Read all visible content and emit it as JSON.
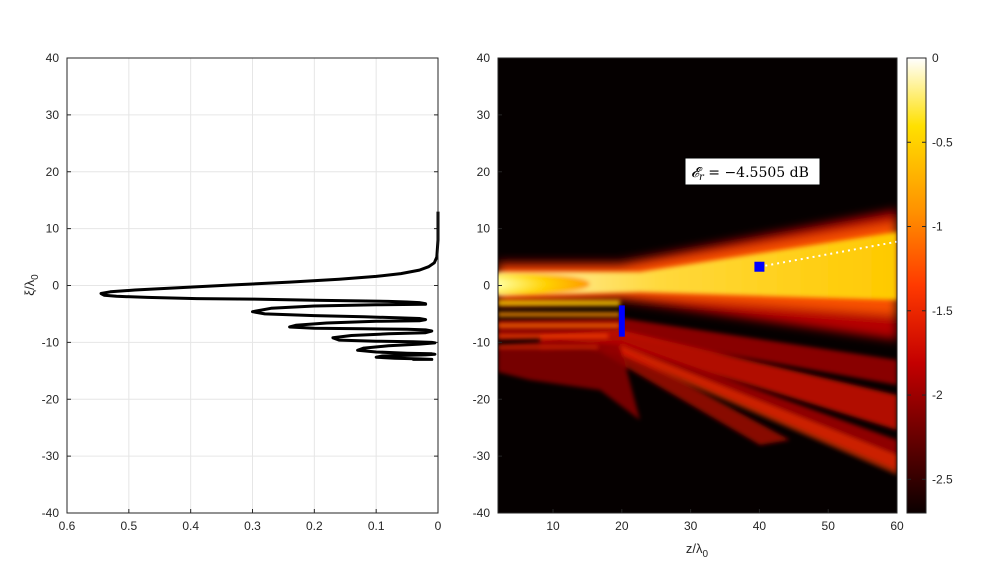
{
  "chart_data": [
    {
      "type": "line",
      "title": "",
      "xlabel": "",
      "ylabel": "ξ/λ0",
      "ylabel_parts": {
        "base": "ξ/λ",
        "sub": "0"
      },
      "xlim": [
        0.6,
        0
      ],
      "x_reversed": true,
      "ylim": [
        -40,
        40
      ],
      "x_ticks": [
        "0.6",
        "0.5",
        "0.4",
        "0.3",
        "0.2",
        "0.1",
        "0"
      ],
      "y_ticks": [
        "-40",
        "-30",
        "-20",
        "-10",
        "0",
        "10",
        "20",
        "30",
        "40"
      ],
      "grid": true,
      "line_color": "#000000",
      "series": [
        {
          "x": [
            0.0,
            0.0,
            0.002,
            0.006,
            0.015,
            0.03,
            0.06,
            0.1,
            0.16,
            0.24,
            0.33,
            0.42,
            0.49,
            0.53,
            0.545,
            0.54,
            0.52,
            0.47,
            0.39,
            0.3,
            0.2,
            0.13,
            0.08,
            0.05,
            0.03,
            0.02,
            0.02,
            0.1,
            0.2,
            0.27,
            0.3,
            0.28,
            0.2,
            0.12,
            0.06,
            0.03,
            0.02,
            0.03,
            0.1,
            0.18,
            0.23,
            0.24,
            0.2,
            0.12,
            0.05,
            0.02,
            0.01,
            0.02,
            0.08,
            0.14,
            0.17,
            0.16,
            0.1,
            0.04,
            0.01,
            0.005,
            0.03,
            0.08,
            0.12,
            0.13,
            0.1,
            0.05,
            0.01,
            0.005,
            0.02,
            0.06,
            0.09,
            0.1,
            0.07,
            0.03,
            0.01,
            0.02,
            0.04,
            0.04,
            0.02
          ],
          "y": [
            13,
            8,
            5,
            4,
            3.3,
            2.7,
            2.1,
            1.6,
            1.1,
            0.6,
            0.1,
            -0.4,
            -0.8,
            -1.1,
            -1.4,
            -1.7,
            -1.9,
            -2.1,
            -2.3,
            -2.4,
            -2.6,
            -2.7,
            -2.8,
            -2.9,
            -3.0,
            -3.2,
            -3.3,
            -3.4,
            -3.6,
            -4.0,
            -4.6,
            -5.0,
            -5.3,
            -5.5,
            -5.7,
            -5.8,
            -6.0,
            -6.2,
            -6.3,
            -6.6,
            -7.0,
            -7.3,
            -7.5,
            -7.6,
            -7.7,
            -7.8,
            -8.0,
            -8.3,
            -8.5,
            -8.8,
            -9.2,
            -9.6,
            -9.8,
            -9.9,
            -10.0,
            -10.1,
            -10.3,
            -10.6,
            -11.0,
            -11.4,
            -11.7,
            -11.9,
            -12.0,
            -12.1,
            -12.2,
            -12.3,
            -12.4,
            -12.6,
            -12.8,
            -12.9,
            -13.0,
            -13.0,
            -13.0,
            -13.0,
            -13.0
          ]
        }
      ]
    },
    {
      "type": "heatmap",
      "title": "",
      "xlabel": "z/λ0",
      "xlabel_parts": {
        "base": "z/λ",
        "sub": "0"
      },
      "ylabel": "",
      "xlim": [
        2,
        60
      ],
      "ylim": [
        -40,
        40
      ],
      "x_ticks": [
        "10",
        "20",
        "30",
        "40",
        "50",
        "60"
      ],
      "y_ticks": [
        "-40",
        "-30",
        "-20",
        "-10",
        "0",
        "10",
        "20",
        "30",
        "40"
      ],
      "colormap": "hot",
      "clim": [
        -2.7,
        0
      ],
      "colorbar": {
        "ticks": [
          "0",
          "-0.5",
          "-1",
          "-1.5",
          "-2",
          "-2.5"
        ],
        "tick_values": [
          0,
          -0.5,
          -1,
          -1.5,
          -2,
          -2.5
        ],
        "location": "right"
      },
      "annotation": {
        "text": "𝓔r = −4.5505 dB",
        "lhs": "𝓔",
        "sub": "r",
        "rhs": " = −4.5505 dB",
        "location": "upper-center-right"
      },
      "markers": [
        {
          "kind": "square",
          "x": 40,
          "y": 3.3,
          "color": "#0000ff"
        },
        {
          "kind": "segment",
          "x": 20,
          "y_from": -9,
          "y_to": -3.5,
          "color": "#0000ff"
        }
      ],
      "guide_line": {
        "style": "dotted",
        "color": "#ffffff",
        "x_from": 40,
        "y_from": 3.3,
        "x_to": 60,
        "y_to": 7.7
      }
    }
  ]
}
